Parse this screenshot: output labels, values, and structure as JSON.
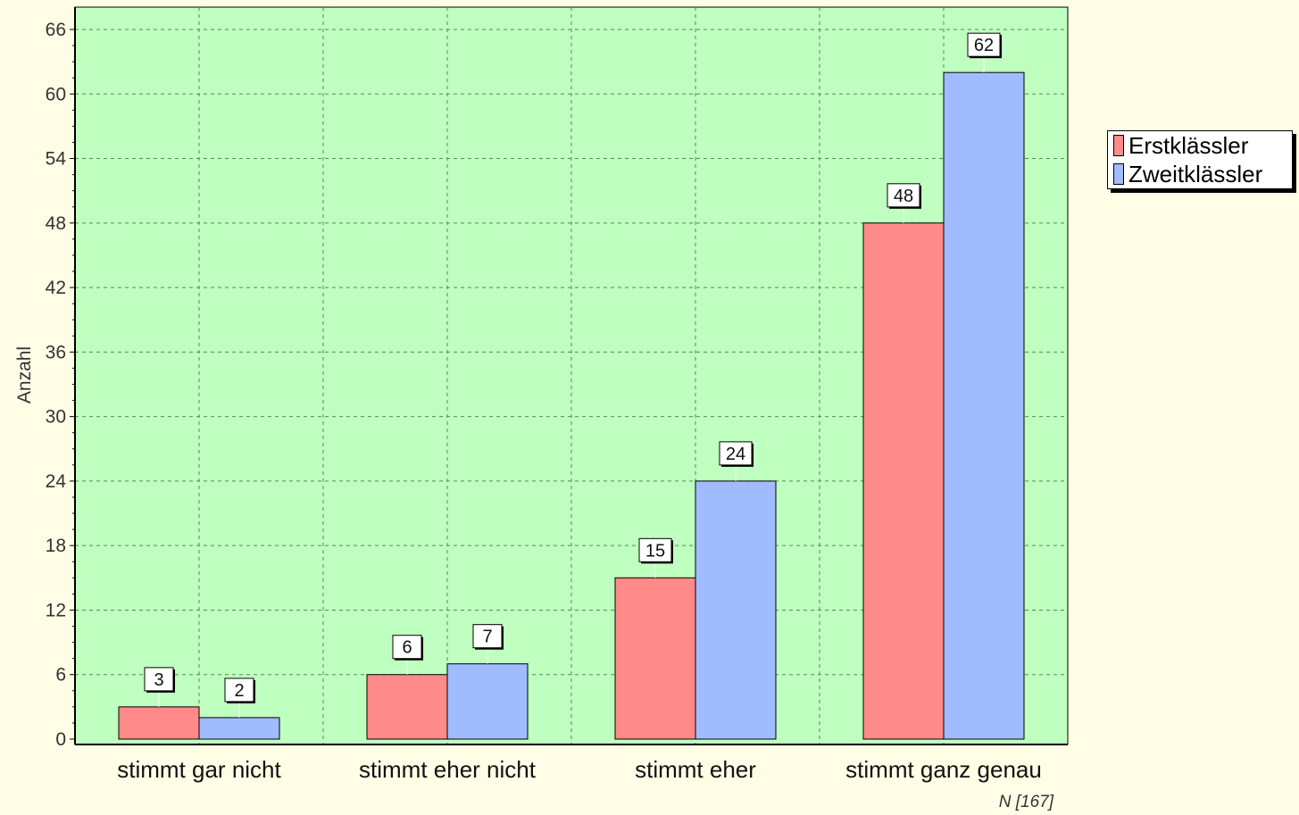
{
  "chart_data": {
    "type": "bar",
    "categories": [
      "stimmt gar nicht",
      "stimmt eher nicht",
      "stimmt eher",
      "stimmt ganz genau"
    ],
    "series": [
      {
        "name": "Erstklässler",
        "color": "#ff8a8a",
        "values": [
          3,
          6,
          15,
          48
        ]
      },
      {
        "name": "Zweitklässler",
        "color": "#a0bcff",
        "values": [
          2,
          7,
          24,
          62
        ]
      }
    ],
    "ylabel": "Anzahl",
    "ylim": [
      0,
      66
    ],
    "yticks": [
      0,
      6,
      12,
      18,
      24,
      30,
      36,
      42,
      48,
      54,
      60,
      66
    ],
    "grid": true,
    "legend_position": "right",
    "plot_background": "#bfffbf",
    "page_background": "#fffde6",
    "note": "N [167]"
  }
}
